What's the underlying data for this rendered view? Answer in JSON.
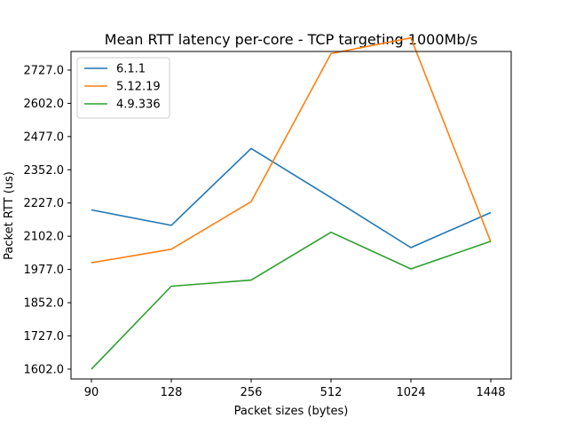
{
  "chart_data": {
    "type": "line",
    "title": "Mean RTT latency per-core - TCP targeting 1000Mb/s",
    "xlabel": "Packet sizes (bytes)",
    "ylabel": "Packet RTT (us)",
    "categories": [
      "90",
      "128",
      "256",
      "512",
      "1024",
      "1448"
    ],
    "yticks": [
      "1602.0",
      "1727.0",
      "1852.0",
      "1977.0",
      "2102.0",
      "2227.0",
      "2352.0",
      "2477.0",
      "2602.0",
      "2727.0"
    ],
    "ytick_values": [
      1602,
      1727,
      1852,
      1977,
      2102,
      2227,
      2352,
      2477,
      2602,
      2727
    ],
    "ylim": [
      1565,
      2797
    ],
    "legend_position": "upper left",
    "grid": false,
    "series": [
      {
        "name": "6.1.1",
        "color": "#1f77b4",
        "values": [
          2201,
          2143,
          2432,
          2247,
          2059,
          2191
        ]
      },
      {
        "name": "5.12.19",
        "color": "#ff7f0e",
        "values": [
          2002,
          2053,
          2232,
          2789,
          2848,
          2081
        ]
      },
      {
        "name": "4.9.336",
        "color": "#2ca02c",
        "values": [
          1602,
          1914,
          1937,
          2117,
          1979,
          2083
        ]
      }
    ]
  }
}
